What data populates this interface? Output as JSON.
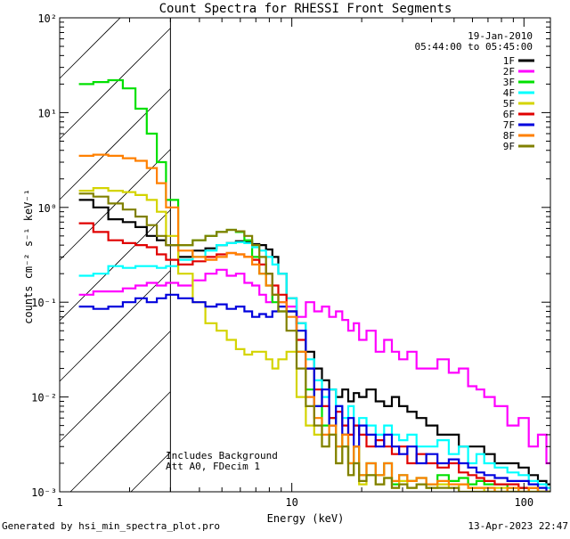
{
  "chart_data": {
    "type": "line",
    "title": "Count Spectra for RHESSI Front Segments",
    "xlabel": "Energy (keV)",
    "ylabel": "counts cm⁻² s⁻¹ keV⁻¹",
    "xscale": "log",
    "yscale": "log",
    "xlim": [
      1,
      130
    ],
    "ylim": [
      0.001,
      100
    ],
    "x_ticks": [
      {
        "value": 1,
        "label": "1"
      },
      {
        "value": 10,
        "label": "10"
      },
      {
        "value": 100,
        "label": "100"
      }
    ],
    "y_ticks": [
      {
        "value": 0.001,
        "label": "10⁻³"
      },
      {
        "value": 0.01,
        "label": "10⁻²"
      },
      {
        "value": 0.1,
        "label": "10⁻¹"
      },
      {
        "value": 1,
        "label": "10⁰"
      },
      {
        "value": 10,
        "label": "10¹"
      },
      {
        "value": 100,
        "label": "10²"
      }
    ],
    "date": "19-Jan-2010",
    "time_range": "05:44:00 to 05:45:00",
    "annotation_lines": [
      "Includes Background",
      "Att A0, FDecim 1"
    ],
    "excluded_region_keV": [
      1,
      3
    ],
    "legend_position": "top-right",
    "series": [
      {
        "name": "1F",
        "color": "#000000",
        "x": [
          1.3,
          1.5,
          1.75,
          2.0,
          2.25,
          2.5,
          2.75,
          3.0,
          3.5,
          4.0,
          4.5,
          5.0,
          5.5,
          6.0,
          6.5,
          7.0,
          7.5,
          8.0,
          8.5,
          9.0,
          10,
          11,
          12,
          13,
          14,
          15,
          16,
          17,
          18,
          19,
          20,
          22,
          24,
          26,
          28,
          30,
          33,
          36,
          40,
          45,
          50,
          55,
          60,
          65,
          70,
          80,
          90,
          100,
          110,
          120,
          130
        ],
        "y": [
          1.2,
          1.0,
          0.75,
          0.7,
          0.62,
          0.5,
          0.45,
          0.4,
          0.3,
          0.35,
          0.37,
          0.4,
          0.42,
          0.44,
          0.43,
          0.41,
          0.4,
          0.36,
          0.3,
          0.2,
          0.11,
          0.06,
          0.03,
          0.02,
          0.015,
          0.012,
          0.01,
          0.012,
          0.009,
          0.011,
          0.01,
          0.012,
          0.009,
          0.008,
          0.01,
          0.008,
          0.007,
          0.006,
          0.005,
          0.004,
          0.004,
          0.003,
          0.003,
          0.003,
          0.0025,
          0.002,
          0.002,
          0.0018,
          0.0015,
          0.0013,
          0.0012
        ]
      },
      {
        "name": "2F",
        "color": "#ff00ff",
        "x": [
          1.3,
          1.5,
          1.75,
          2.0,
          2.25,
          2.5,
          2.75,
          3.0,
          3.5,
          4.0,
          4.5,
          5.0,
          5.5,
          6.0,
          6.5,
          7.0,
          7.5,
          8.0,
          8.5,
          9.0,
          10,
          11,
          12,
          13,
          14,
          15,
          16,
          17,
          18,
          19,
          20,
          22,
          24,
          26,
          28,
          30,
          33,
          36,
          40,
          45,
          50,
          55,
          60,
          65,
          70,
          80,
          90,
          100,
          110,
          120,
          130
        ],
        "y": [
          0.12,
          0.13,
          0.13,
          0.14,
          0.15,
          0.16,
          0.15,
          0.16,
          0.15,
          0.17,
          0.2,
          0.22,
          0.19,
          0.2,
          0.16,
          0.15,
          0.12,
          0.1,
          0.12,
          0.1,
          0.09,
          0.07,
          0.1,
          0.08,
          0.09,
          0.07,
          0.08,
          0.065,
          0.05,
          0.06,
          0.04,
          0.05,
          0.03,
          0.04,
          0.03,
          0.025,
          0.03,
          0.02,
          0.02,
          0.025,
          0.018,
          0.02,
          0.013,
          0.012,
          0.01,
          0.008,
          0.005,
          0.006,
          0.003,
          0.004,
          0.002
        ]
      },
      {
        "name": "3F",
        "color": "#00e000",
        "x": [
          1.3,
          1.5,
          1.75,
          2.0,
          2.25,
          2.5,
          2.75,
          3.0,
          3.5,
          4.0,
          4.5,
          5.0,
          5.5,
          6.0,
          6.5,
          7.0,
          7.5,
          8.0,
          8.5,
          9.0,
          10,
          11,
          12,
          13,
          14,
          15,
          16,
          17,
          18,
          19,
          20,
          22,
          24,
          26,
          28,
          30,
          33,
          36,
          40,
          45,
          50,
          55,
          60,
          65,
          70,
          80,
          90,
          100,
          110,
          120,
          130
        ],
        "y": [
          20,
          21,
          22,
          18,
          11,
          6,
          3,
          1.2,
          0.4,
          0.45,
          0.5,
          0.55,
          0.58,
          0.55,
          0.45,
          0.3,
          0.2,
          0.15,
          0.1,
          0.08,
          0.08,
          0.03,
          0.012,
          0.008,
          0.005,
          0.006,
          0.003,
          0.004,
          0.002,
          0.003,
          0.0015,
          0.002,
          0.0015,
          0.002,
          0.0012,
          0.0015,
          0.0013,
          0.0014,
          0.0012,
          0.0015,
          0.0013,
          0.0014,
          0.0012,
          0.0013,
          0.0012,
          0.0012,
          0.0011,
          0.0011,
          0.0011,
          0.001,
          0.001
        ]
      },
      {
        "name": "4F",
        "color": "#00ffff",
        "x": [
          1.3,
          1.5,
          1.75,
          2.0,
          2.25,
          2.5,
          2.75,
          3.0,
          3.5,
          4.0,
          4.5,
          5.0,
          5.5,
          6.0,
          6.5,
          7.0,
          7.5,
          8.0,
          8.5,
          9.0,
          10,
          11,
          12,
          13,
          14,
          15,
          16,
          17,
          18,
          19,
          20,
          22,
          24,
          26,
          28,
          30,
          33,
          36,
          40,
          45,
          50,
          55,
          60,
          65,
          70,
          80,
          90,
          100,
          110,
          120,
          130
        ],
        "y": [
          0.19,
          0.2,
          0.24,
          0.23,
          0.24,
          0.24,
          0.23,
          0.24,
          0.28,
          0.3,
          0.35,
          0.4,
          0.42,
          0.43,
          0.42,
          0.38,
          0.35,
          0.3,
          0.25,
          0.2,
          0.11,
          0.06,
          0.025,
          0.015,
          0.01,
          0.012,
          0.008,
          0.006,
          0.008,
          0.005,
          0.006,
          0.005,
          0.004,
          0.005,
          0.004,
          0.0035,
          0.004,
          0.003,
          0.003,
          0.0035,
          0.0025,
          0.003,
          0.002,
          0.0025,
          0.002,
          0.0018,
          0.0016,
          0.0015,
          0.0013,
          0.0012,
          0.0011
        ]
      },
      {
        "name": "5F",
        "color": "#d4d400",
        "x": [
          1.3,
          1.5,
          1.75,
          2.0,
          2.25,
          2.5,
          2.75,
          3.0,
          3.5,
          4.0,
          4.5,
          5.0,
          5.5,
          6.0,
          6.5,
          7.0,
          7.5,
          8.0,
          8.5,
          9.0,
          10,
          11,
          12,
          13,
          14,
          15,
          16,
          17,
          18,
          19,
          20,
          22,
          24,
          26,
          28,
          30,
          33,
          36,
          40,
          45,
          50,
          55,
          60,
          65,
          70,
          80,
          90,
          100,
          110,
          120,
          130
        ],
        "y": [
          1.5,
          1.6,
          1.5,
          1.45,
          1.35,
          1.2,
          0.9,
          0.5,
          0.2,
          0.1,
          0.06,
          0.05,
          0.04,
          0.032,
          0.028,
          0.03,
          0.03,
          0.025,
          0.02,
          0.025,
          0.03,
          0.01,
          0.005,
          0.004,
          0.003,
          0.004,
          0.002,
          0.003,
          0.0015,
          0.002,
          0.0012,
          0.0015,
          0.0012,
          0.0014,
          0.0011,
          0.0013,
          0.0011,
          0.0012,
          0.0011,
          0.0012,
          0.0011,
          0.0012,
          0.0011,
          0.0011,
          0.001,
          0.0011,
          0.001,
          0.0011,
          0.001,
          0.001,
          0.001
        ]
      },
      {
        "name": "6F",
        "color": "#e00000",
        "x": [
          1.3,
          1.5,
          1.75,
          2.0,
          2.25,
          2.5,
          2.75,
          3.0,
          3.5,
          4.0,
          4.5,
          5.0,
          5.5,
          6.0,
          6.5,
          7.0,
          7.5,
          8.0,
          8.5,
          9.0,
          10,
          11,
          12,
          13,
          14,
          15,
          16,
          17,
          18,
          19,
          20,
          22,
          24,
          26,
          28,
          30,
          33,
          36,
          40,
          45,
          50,
          55,
          60,
          65,
          70,
          80,
          90,
          100,
          110,
          120,
          130
        ],
        "y": [
          0.68,
          0.55,
          0.45,
          0.42,
          0.4,
          0.38,
          0.32,
          0.28,
          0.25,
          0.27,
          0.3,
          0.32,
          0.33,
          0.32,
          0.3,
          0.28,
          0.25,
          0.2,
          0.15,
          0.12,
          0.08,
          0.04,
          0.02,
          0.012,
          0.008,
          0.006,
          0.007,
          0.005,
          0.004,
          0.005,
          0.004,
          0.003,
          0.0035,
          0.003,
          0.0025,
          0.003,
          0.002,
          0.0025,
          0.002,
          0.0018,
          0.002,
          0.0016,
          0.0015,
          0.0014,
          0.0013,
          0.0012,
          0.0012,
          0.0011,
          0.0011,
          0.001,
          0.001
        ]
      },
      {
        "name": "7F",
        "color": "#0000dd",
        "x": [
          1.3,
          1.5,
          1.75,
          2.0,
          2.25,
          2.5,
          2.75,
          3.0,
          3.5,
          4.0,
          4.5,
          5.0,
          5.5,
          6.0,
          6.5,
          7.0,
          7.5,
          8.0,
          8.5,
          9.0,
          10,
          11,
          12,
          13,
          14,
          15,
          16,
          17,
          18,
          19,
          20,
          22,
          24,
          26,
          28,
          30,
          33,
          36,
          40,
          45,
          50,
          55,
          60,
          65,
          70,
          80,
          90,
          100,
          110,
          120,
          130
        ],
        "y": [
          0.09,
          0.085,
          0.09,
          0.1,
          0.11,
          0.1,
          0.11,
          0.12,
          0.11,
          0.1,
          0.09,
          0.095,
          0.085,
          0.09,
          0.08,
          0.07,
          0.075,
          0.07,
          0.08,
          0.09,
          0.08,
          0.05,
          0.02,
          0.008,
          0.012,
          0.005,
          0.008,
          0.004,
          0.006,
          0.003,
          0.005,
          0.004,
          0.003,
          0.004,
          0.003,
          0.0025,
          0.003,
          0.002,
          0.0025,
          0.002,
          0.0022,
          0.002,
          0.0018,
          0.0016,
          0.0015,
          0.0014,
          0.0013,
          0.0013,
          0.0012,
          0.0011,
          0.001
        ]
      },
      {
        "name": "8F",
        "color": "#ff8000",
        "x": [
          1.3,
          1.5,
          1.75,
          2.0,
          2.25,
          2.5,
          2.75,
          3.0,
          3.5,
          4.0,
          4.5,
          5.0,
          5.5,
          6.0,
          6.5,
          7.0,
          7.5,
          8.0,
          8.5,
          9.0,
          10,
          11,
          12,
          13,
          14,
          15,
          16,
          17,
          18,
          19,
          20,
          22,
          24,
          26,
          28,
          30,
          33,
          36,
          40,
          45,
          50,
          55,
          60,
          65,
          70,
          80,
          90,
          100,
          110,
          120,
          130
        ],
        "y": [
          3.5,
          3.6,
          3.5,
          3.3,
          3.1,
          2.6,
          1.8,
          1.0,
          0.35,
          0.3,
          0.28,
          0.3,
          0.33,
          0.32,
          0.3,
          0.25,
          0.2,
          0.15,
          0.12,
          0.1,
          0.07,
          0.03,
          0.01,
          0.006,
          0.004,
          0.005,
          0.003,
          0.004,
          0.002,
          0.003,
          0.0015,
          0.002,
          0.0015,
          0.002,
          0.0013,
          0.0015,
          0.0013,
          0.0014,
          0.0012,
          0.0013,
          0.0012,
          0.0012,
          0.0011,
          0.0011,
          0.0011,
          0.001,
          0.0011,
          0.001,
          0.0011,
          0.001,
          0.001
        ]
      },
      {
        "name": "9F",
        "color": "#808000",
        "x": [
          1.3,
          1.5,
          1.75,
          2.0,
          2.25,
          2.5,
          2.75,
          3.0,
          3.5,
          4.0,
          4.5,
          5.0,
          5.5,
          6.0,
          6.5,
          7.0,
          7.5,
          8.0,
          8.5,
          9.0,
          10,
          11,
          12,
          13,
          14,
          15,
          16,
          17,
          18,
          19,
          20,
          22,
          24,
          26,
          28,
          30,
          33,
          36,
          40,
          45,
          50,
          55,
          60,
          65,
          70,
          80,
          90,
          100,
          110,
          120,
          130
        ],
        "y": [
          1.4,
          1.3,
          1.1,
          0.95,
          0.8,
          0.65,
          0.5,
          0.4,
          0.4,
          0.45,
          0.5,
          0.55,
          0.58,
          0.56,
          0.5,
          0.4,
          0.3,
          0.2,
          0.12,
          0.08,
          0.05,
          0.02,
          0.008,
          0.005,
          0.003,
          0.004,
          0.002,
          0.003,
          0.0015,
          0.002,
          0.0013,
          0.0015,
          0.0012,
          0.0014,
          0.0011,
          0.0012,
          0.0011,
          0.0012,
          0.0011,
          0.0011,
          0.0011,
          0.001,
          0.001,
          0.001,
          0.001,
          0.001,
          0.001,
          0.001,
          0.001,
          0.001,
          0.001
        ]
      }
    ]
  },
  "footer": {
    "generated_by": "Generated by hsi_min_spectra_plot.pro",
    "timestamp": "13-Apr-2023 22:47"
  }
}
